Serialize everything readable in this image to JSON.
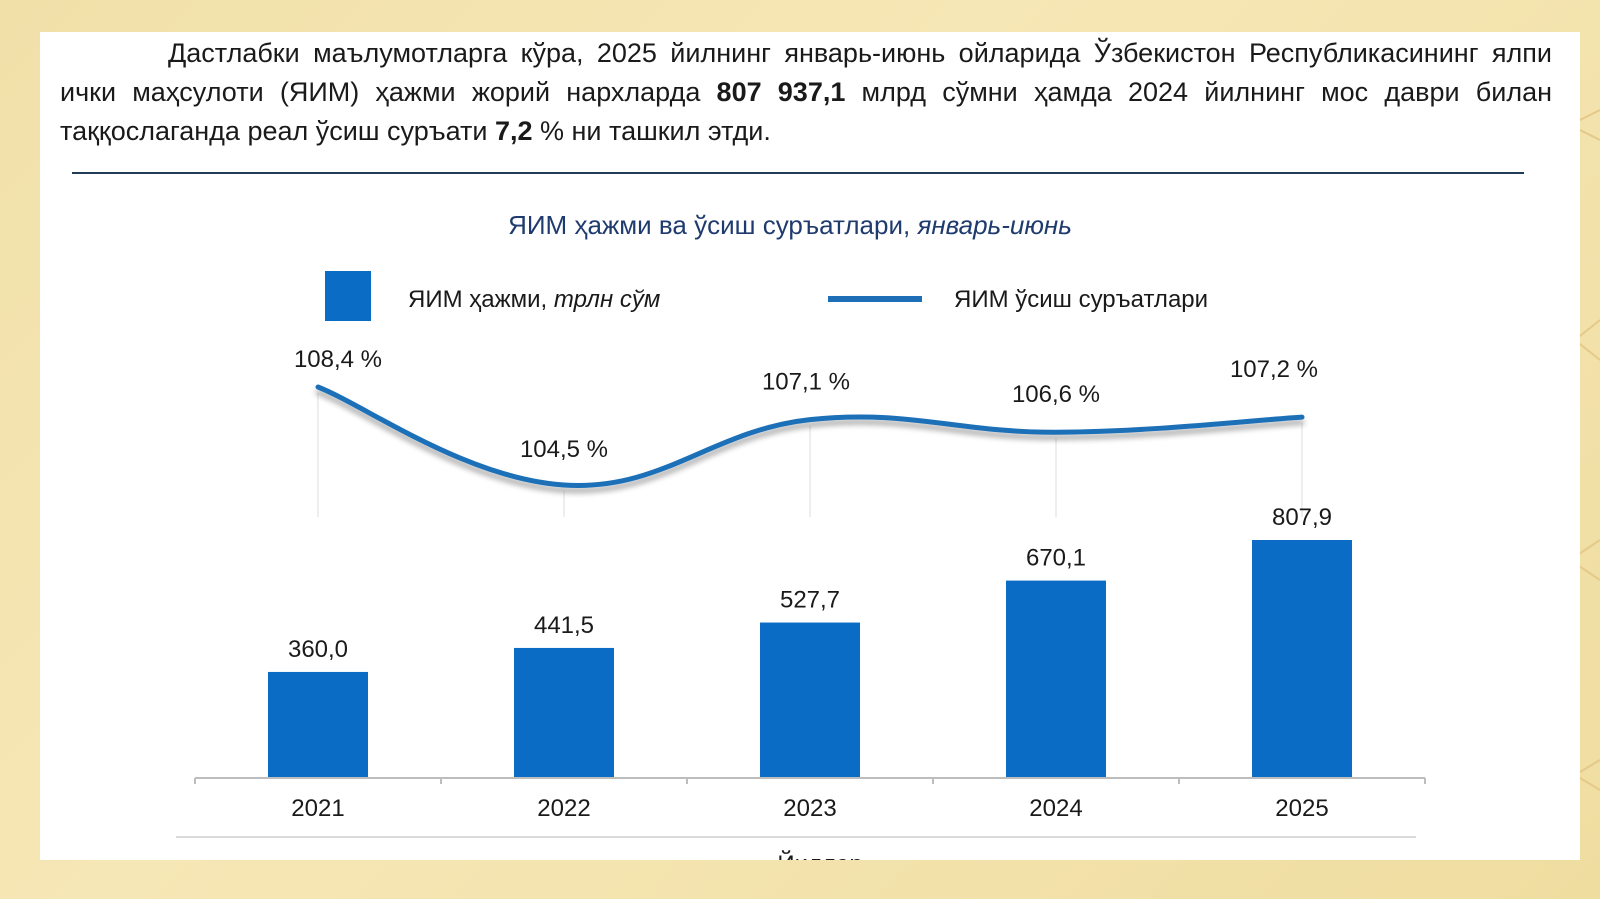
{
  "intro": {
    "p1": "Дастлабки маълумотларга кўра, 2025 йилнинг январь-июнь ойларида Ўзбекистон Республикасининг ялпи ички маҳсулоти (ЯИМ) ҳажми жорий нархларда ",
    "bold1": "807 937,1",
    "p2": " млрд сўмни ҳамда 2024 йилнинг мос даври билан таққослаганда реал ўсиш суръати ",
    "bold2": "7,2",
    "p3": " % ни ташкил этди."
  },
  "chart_data": {
    "type": "bar",
    "title": "ЯИМ ҳажми ва ўсиш суръатлари, ",
    "title_italic": "январь-июнь",
    "xlabel": "Йиллар",
    "categories": [
      "2021",
      "2022",
      "2023",
      "2024",
      "2025"
    ],
    "series": [
      {
        "name": "ЯИМ ҳажми, ",
        "name_italic": "трлн сўм",
        "type": "bar",
        "values": [
          360.0,
          441.5,
          527.7,
          670.1,
          807.9
        ],
        "labels": [
          "360,0",
          "441,5",
          "527,7",
          "670,1",
          "807,9"
        ]
      },
      {
        "name": "ЯИМ ўсиш суръатлари",
        "type": "line",
        "values": [
          108.4,
          104.5,
          107.1,
          106.6,
          107.2
        ],
        "labels": [
          "108,4 %",
          "104,5 %",
          "107,1 %",
          "106,6 %",
          "107,2 %"
        ]
      }
    ],
    "legend_position": "top",
    "grid": false,
    "colors": {
      "bar": "#0a6cc4",
      "line": "#1f6fb8",
      "title": "#1f3b6e",
      "axis": "#bdbdbd"
    }
  }
}
